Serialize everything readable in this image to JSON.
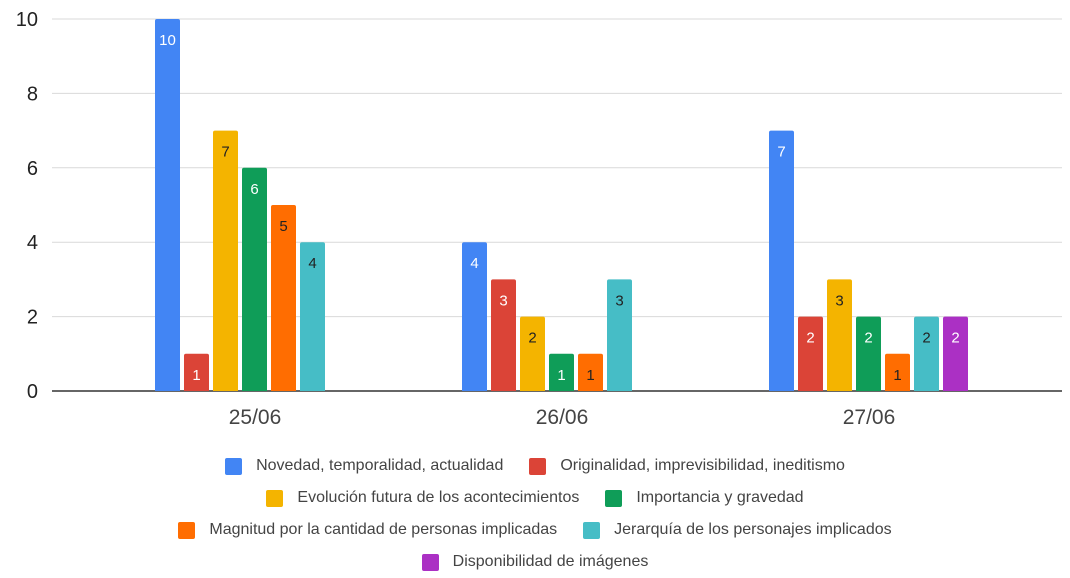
{
  "chart_data": {
    "type": "bar",
    "categories": [
      "25/06",
      "26/06",
      "27/06"
    ],
    "ylim": [
      0,
      10
    ],
    "yticks": [
      "0",
      "2",
      "4",
      "6",
      "8",
      "10"
    ],
    "grid": true,
    "legend_position": "bottom",
    "series": [
      {
        "name": "Novedad, temporalidad, actualidad",
        "color": "#4285f4",
        "label_color": "#ffffff",
        "values": [
          10,
          4,
          7
        ]
      },
      {
        "name": "Originalidad, imprevisibilidad, ineditismo",
        "color": "#db4437",
        "label_color": "#ffffff",
        "values": [
          1,
          3,
          2
        ]
      },
      {
        "name": "Evolución futura de los acontecimientos",
        "color": "#f4b400",
        "label_color": "#222222",
        "values": [
          7,
          2,
          3
        ]
      },
      {
        "name": "Importancia y gravedad",
        "color": "#0f9d58",
        "label_color": "#ffffff",
        "values": [
          6,
          1,
          2
        ]
      },
      {
        "name": "Magnitud por la cantidad de personas implicadas",
        "color": "#ff6d01",
        "label_color": "#222222",
        "values": [
          5,
          1,
          1
        ]
      },
      {
        "name": "Jerarquía de los personajes implicados",
        "color": "#46bdc6",
        "label_color": "#222222",
        "values": [
          4,
          3,
          2
        ]
      },
      {
        "name": "Disponibilidad de imágenes",
        "color": "#ab30c4",
        "label_color": "#ffffff",
        "values": [
          null,
          null,
          2
        ]
      }
    ]
  }
}
